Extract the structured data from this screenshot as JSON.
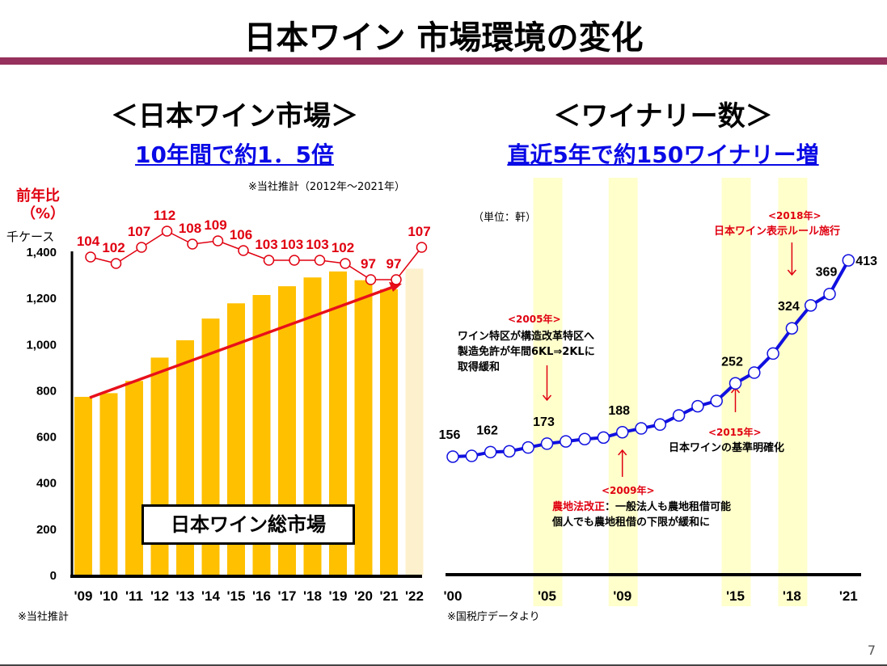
{
  "title": "日本ワイン 市場環境の変化",
  "page_number": "7",
  "colors": {
    "accent_rule": "#96305c",
    "bar": "#ffc000",
    "bar_estimate": "#fdf0cc",
    "yoy_line": "#e00010",
    "winery_line": "#1010e0",
    "highlight_band": "#ffffcc",
    "subtitle": "#0a0ae6"
  },
  "left": {
    "heading": "＜日本ワイン市場＞",
    "subheading": "10年間で約1．5倍",
    "estimate_note": "※当社推計（2012年～2021年）",
    "yoy_label_line1": "前年比",
    "yoy_label_line2": "（%）",
    "unit": "千ケース",
    "box_label": "日本ワイン総市場",
    "footnote": "※当社推計"
  },
  "right": {
    "heading": "＜ワイナリー数＞",
    "subheading": "直近5年で約150ワイナリー増",
    "unit": "（単位：軒）",
    "footnote": "※国税庁データより",
    "annotations": {
      "a2005_year": "<2005年>",
      "a2005_l1": "ワイン特区が構造改革特区へ",
      "a2005_l2": "製造免許が年間6KL⇒2KLに",
      "a2005_l3": "取得緩和",
      "a2009_year": "<2009年>",
      "a2009_bold": "農地法改正",
      "a2009_l1": "：一般法人も農地租借可能",
      "a2009_l2": "個人でも農地租借の下限が緩和に",
      "a2015_year": "<2015年>",
      "a2015_l1": "日本ワインの基準明確化",
      "a2018_year": "<2018年>",
      "a2018_l1": "日本ワイン表示ルール施行"
    }
  },
  "chart_data": [
    {
      "type": "bar",
      "categories": [
        "'09",
        "'10",
        "'11",
        "'12",
        "'13",
        "'14",
        "'15",
        "'16",
        "'17",
        "'18",
        "'19",
        "'20",
        "'21",
        "'22"
      ],
      "ylabel": "千ケース",
      "ylim": [
        0,
        1400
      ],
      "yticks": [
        "0",
        "200",
        "400",
        "600",
        "800",
        "1,000",
        "1,200",
        "1,400"
      ],
      "series": [
        {
          "name": "日本ワイン総市場",
          "values": [
            770,
            786,
            839,
            940,
            1015,
            1109,
            1175,
            1211,
            1249,
            1287,
            1313,
            1275,
            1236,
            1325
          ]
        }
      ],
      "estimated_categories": [
        "'22"
      ],
      "overlay_line": {
        "type": "line",
        "values": [
          104,
          102,
          107,
          112,
          108,
          109,
          106,
          103,
          103,
          103,
          102,
          97,
          97,
          107
        ],
        "labels": [
          "104",
          "102",
          "107",
          "112",
          "108",
          "109",
          "106",
          "103",
          "103",
          "103",
          "102",
          "97",
          "97",
          "107"
        ]
      },
      "trend_arrow": {
        "from": "'09",
        "to": "'21"
      },
      "grid": false
    },
    {
      "type": "line",
      "x": [
        2000,
        2001,
        2002,
        2003,
        2004,
        2005,
        2006,
        2007,
        2008,
        2009,
        2010,
        2011,
        2012,
        2013,
        2014,
        2015,
        2016,
        2017,
        2018,
        2019,
        2020,
        2021
      ],
      "values": [
        156,
        157,
        162,
        163,
        168,
        173,
        176,
        179,
        181,
        188,
        193,
        198,
        210,
        222,
        229,
        252,
        266,
        291,
        324,
        354,
        369,
        413
      ],
      "point_labels": {
        "2000": "156",
        "2002": "162",
        "2005": "173",
        "2009": "188",
        "2015": "252",
        "2018": "324",
        "2020": "369",
        "2021": "413"
      },
      "xticks": [
        {
          "year": 2000,
          "label": "'00"
        },
        {
          "year": 2005,
          "label": "'05"
        },
        {
          "year": 2009,
          "label": "'09"
        },
        {
          "year": 2015,
          "label": "'15"
        },
        {
          "year": 2018,
          "label": "'18"
        },
        {
          "year": 2021,
          "label": "'21"
        }
      ],
      "highlight_years": [
        2005,
        2009,
        2015,
        2018
      ],
      "grid": false
    }
  ]
}
